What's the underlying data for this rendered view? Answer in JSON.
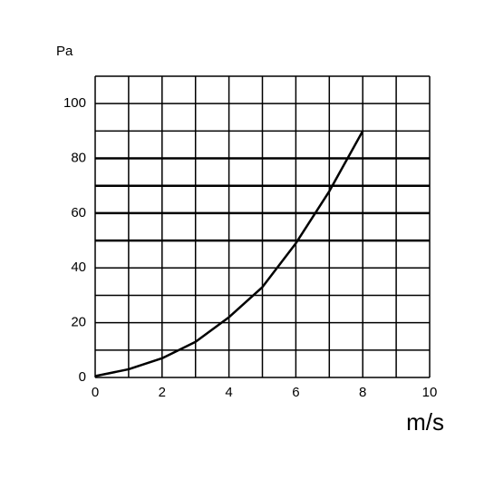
{
  "chart_data": {
    "type": "line",
    "ylabel": "Pa",
    "xlabel": "m/s",
    "x": [
      0,
      1,
      2,
      3,
      4,
      5,
      6,
      7,
      8
    ],
    "series": [
      {
        "color": "#000000",
        "values": [
          0.5,
          3,
          7,
          13,
          22,
          33,
          49,
          68,
          90
        ]
      }
    ],
    "xlim": [
      0,
      10
    ],
    "ylim": [
      0,
      110
    ],
    "xticks": [
      0,
      2,
      4,
      6,
      8,
      10
    ],
    "yticks": [
      0,
      20,
      40,
      60,
      80,
      100
    ],
    "xgrid": [
      0,
      1,
      2,
      3,
      4,
      5,
      6,
      7,
      8,
      9,
      10
    ],
    "ygrid": [
      0,
      10,
      20,
      30,
      40,
      50,
      60,
      70,
      80,
      90,
      100,
      110
    ],
    "bold_grid": [
      50,
      60,
      70,
      80
    ]
  }
}
